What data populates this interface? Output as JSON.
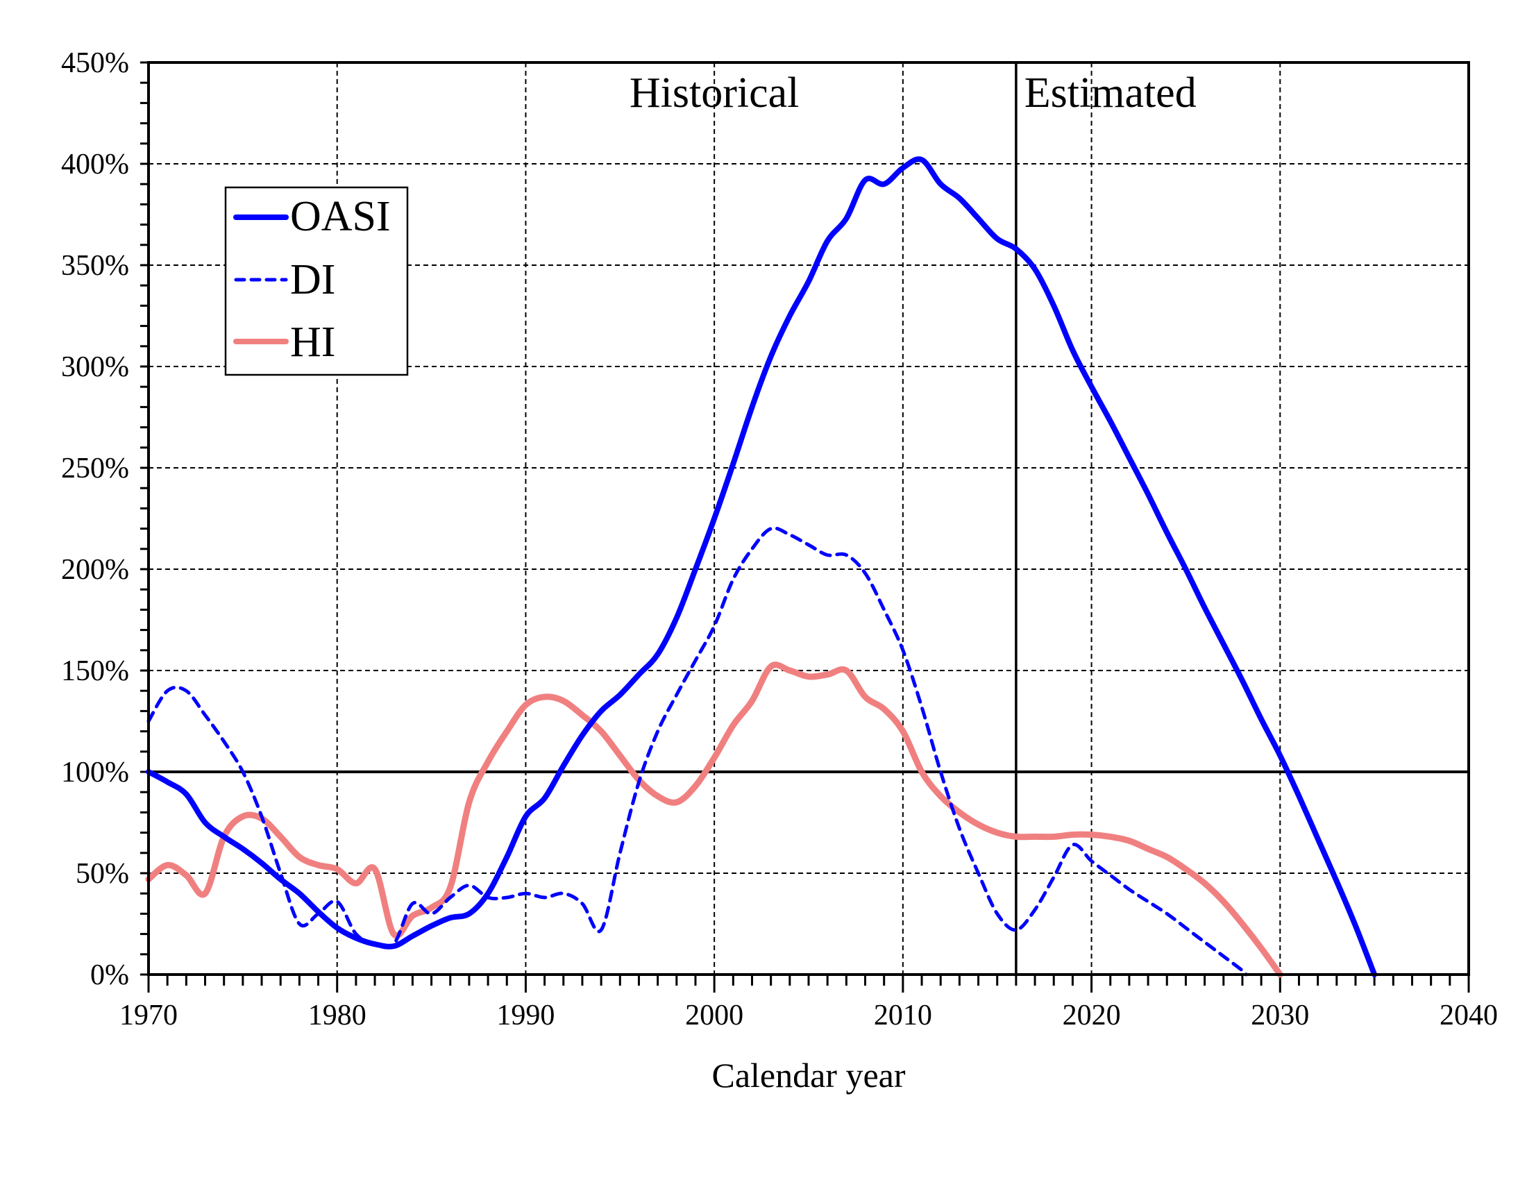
{
  "chart_data": {
    "type": "line",
    "title": "",
    "xlabel": "Calendar year",
    "ylabel": "",
    "xlim": [
      1970,
      2040
    ],
    "ylim": [
      0,
      450
    ],
    "x_ticks": [
      1970,
      1980,
      1990,
      2000,
      2010,
      2020,
      2030,
      2040
    ],
    "x_tick_labels": [
      "1970",
      "1980",
      "1990",
      "2000",
      "2010",
      "2020",
      "2030",
      "2040"
    ],
    "y_ticks": [
      0,
      50,
      100,
      150,
      200,
      250,
      300,
      350,
      400,
      450
    ],
    "y_tick_labels": [
      "0%",
      "50%",
      "100%",
      "150%",
      "200%",
      "250%",
      "300%",
      "350%",
      "400%",
      "450%"
    ],
    "x_minor_step": 1,
    "y_minor_step": 10,
    "grid": true,
    "reference_line_y": 100,
    "divider_x": 2016,
    "annotations": [
      {
        "text": "Historical",
        "x": 2000,
        "y": 428
      },
      {
        "text": "Estimated",
        "x": 2021,
        "y": 428
      }
    ],
    "legend": {
      "placement": "upper-left",
      "entries": [
        "OASI",
        "DI",
        "HI"
      ]
    },
    "series": [
      {
        "name": "OASI",
        "color": "#0000ff",
        "style": "solid",
        "x": [
          1970,
          1971,
          1972,
          1973,
          1974,
          1975,
          1976,
          1977,
          1978,
          1979,
          1980,
          1981,
          1982,
          1983,
          1984,
          1985,
          1986,
          1987,
          1988,
          1989,
          1990,
          1991,
          1992,
          1993,
          1994,
          1995,
          1996,
          1997,
          1998,
          1999,
          2000,
          2001,
          2002,
          2003,
          2004,
          2005,
          2006,
          2007,
          2008,
          2009,
          2010,
          2011,
          2012,
          2013,
          2014,
          2015,
          2016,
          2017,
          2018,
          2019,
          2020,
          2021,
          2022,
          2023,
          2024,
          2025,
          2026,
          2027,
          2028,
          2029,
          2030,
          2031,
          2032,
          2033,
          2034,
          2035
        ],
        "values": [
          100,
          95,
          89,
          75,
          68,
          62,
          55,
          47,
          40,
          31,
          23,
          18,
          15,
          14,
          19,
          24,
          28,
          30,
          40,
          58,
          78,
          87,
          103,
          118,
          130,
          138,
          148,
          158,
          176,
          200,
          225,
          252,
          280,
          305,
          325,
          342,
          362,
          373,
          392,
          390,
          398,
          402,
          390,
          383,
          373,
          363,
          358,
          348,
          330,
          308,
          290,
          273,
          255,
          237,
          218,
          200,
          181,
          163,
          145,
          126,
          108,
          88,
          67,
          46,
          24,
          0
        ]
      },
      {
        "name": "DI",
        "color": "#0000ff",
        "style": "dashed",
        "x": [
          1970,
          1971,
          1972,
          1973,
          1974,
          1975,
          1976,
          1977,
          1978,
          1979,
          1980,
          1981,
          1982,
          1983,
          1984,
          1985,
          1986,
          1987,
          1988,
          1989,
          1990,
          1991,
          1992,
          1993,
          1994,
          1995,
          1996,
          1997,
          1998,
          1999,
          2000,
          2001,
          2002,
          2003,
          2004,
          2005,
          2006,
          2007,
          2008,
          2009,
          2010,
          2011,
          2012,
          2013,
          2014,
          2015,
          2016,
          2017,
          2018,
          2019,
          2020,
          2021,
          2022,
          2023,
          2024,
          2025,
          2026,
          2027,
          2028,
          2028.2
        ],
        "values": [
          125,
          140,
          140,
          128,
          115,
          100,
          78,
          50,
          25,
          30,
          36,
          20,
          15,
          15,
          35,
          30,
          38,
          44,
          38,
          38,
          40,
          38,
          40,
          35,
          22,
          60,
          95,
          120,
          138,
          155,
          172,
          195,
          210,
          220,
          217,
          212,
          207,
          207,
          198,
          180,
          160,
          132,
          100,
          72,
          50,
          30,
          22,
          32,
          48,
          64,
          56,
          49,
          42,
          36,
          30,
          23,
          16,
          9,
          2,
          0
        ]
      },
      {
        "name": "HI",
        "color": "#f08080",
        "style": "solid",
        "x": [
          1970,
          1971,
          1972,
          1973,
          1974,
          1975,
          1976,
          1977,
          1978,
          1979,
          1980,
          1981,
          1982,
          1983,
          1984,
          1985,
          1986,
          1987,
          1988,
          1989,
          1990,
          1991,
          1992,
          1993,
          1994,
          1995,
          1996,
          1997,
          1998,
          1999,
          2000,
          2001,
          2002,
          2003,
          2004,
          2005,
          2006,
          2007,
          2008,
          2009,
          2010,
          2011,
          2012,
          2013,
          2014,
          2015,
          2016,
          2017,
          2018,
          2019,
          2020,
          2021,
          2022,
          2023,
          2024,
          2025,
          2026,
          2027,
          2028,
          2029,
          2030
        ],
        "values": [
          47,
          54,
          49,
          40,
          68,
          78,
          77,
          68,
          58,
          54,
          52,
          45,
          52,
          20,
          29,
          33,
          43,
          85,
          105,
          120,
          133,
          137,
          135,
          128,
          120,
          108,
          96,
          88,
          85,
          93,
          107,
          123,
          135,
          152,
          150,
          147,
          148,
          150,
          137,
          131,
          120,
          100,
          88,
          80,
          74,
          70,
          68,
          68,
          68,
          69,
          69,
          68,
          66,
          62,
          58,
          52,
          45,
          36,
          25,
          13,
          0
        ]
      }
    ]
  }
}
